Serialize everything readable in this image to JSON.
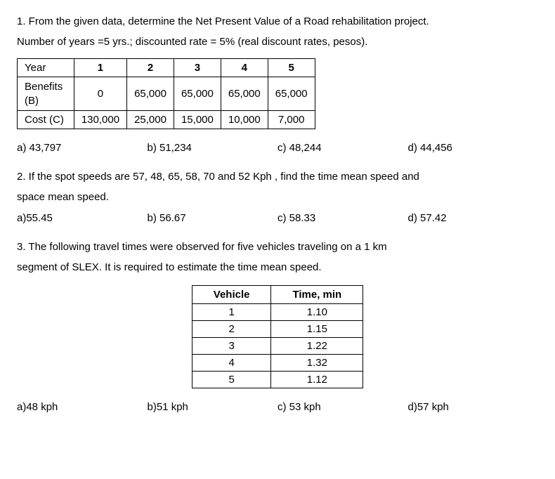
{
  "q1": {
    "text_line1": "1. From the given data, determine the Net Present Value of a Road rehabilitation project.",
    "text_line2": "Number of years =5 yrs.; discounted rate = 5% (real discount rates, pesos).",
    "table": {
      "header_row_label": "Year",
      "years": [
        "1",
        "2",
        "3",
        "4",
        "5"
      ],
      "rows": [
        {
          "label": "Benefits (B)",
          "values": [
            "0",
            "65,000",
            "65,000",
            "65,000",
            "65,000"
          ]
        },
        {
          "label": "Cost (C)",
          "values": [
            "130,000",
            "25,000",
            "15,000",
            "10,000",
            "7,000"
          ]
        }
      ]
    },
    "options": {
      "a": "a) 43,797",
      "b": "b) 51,234",
      "c": "c) 48,244",
      "d": "d) 44,456"
    }
  },
  "q2": {
    "text_line1": "2. If the spot speeds are 57, 48, 65, 58, 70 and 52 Kph ,  find the time mean speed and",
    "text_line2": "space mean speed.",
    "options": {
      "a": "a)55.45",
      "b": "b) 56.67",
      "c": "c) 58.33",
      "d": "d) 57.42"
    }
  },
  "q3": {
    "text_line1": "3. The following travel times were observed for five vehicles traveling on a 1 km",
    "text_line2": "segment of SLEX. It is required to estimate the time mean speed.",
    "table": {
      "col1": "Vehicle",
      "col2": "Time, min",
      "rows": [
        {
          "v": "1",
          "t": "1.10"
        },
        {
          "v": "2",
          "t": "1.15"
        },
        {
          "v": "3",
          "t": "1.22"
        },
        {
          "v": "4",
          "t": "1.32"
        },
        {
          "v": "5",
          "t": "1.12"
        }
      ]
    },
    "options": {
      "a": "a)48 kph",
      "b": "b)51 kph",
      "c": "c) 53 kph",
      "d": "d)57 kph"
    }
  }
}
